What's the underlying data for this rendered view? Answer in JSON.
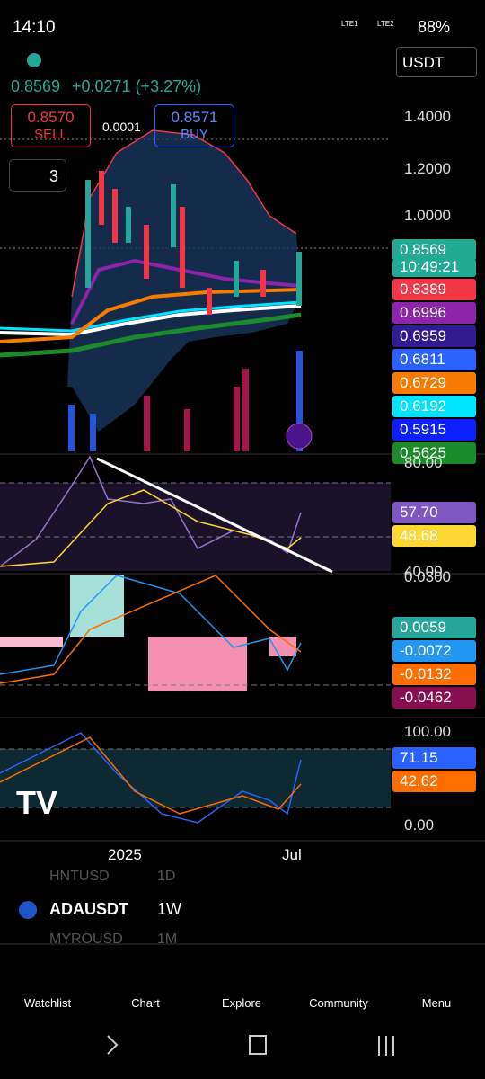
{
  "status_bar": {
    "time": "14:10",
    "sim1": "LTE1",
    "sim2": "LTE2",
    "battery": "88%"
  },
  "header": {
    "last_price": "0.8569",
    "change": "+0.0271 (+3.27%)",
    "currency": "USDT"
  },
  "trade": {
    "sell_price": "0.8570",
    "sell_label": "SELL",
    "spread": "0.0001",
    "buy_price": "0.8571",
    "buy_label": "BUY"
  },
  "indicators_count": "3",
  "price_axis": {
    "ticks": [
      "1.4000",
      "1.2000",
      "1.0000"
    ],
    "labels": [
      {
        "text": "0.8569",
        "sub": "10:49:21",
        "color": "#22ab94"
      },
      {
        "text": "0.8389",
        "color": "#f23645"
      },
      {
        "text": "0.6996",
        "color": "#8e24aa"
      },
      {
        "text": "0.6959",
        "color": "#311b92"
      },
      {
        "text": "0.6811",
        "color": "#2962ff"
      },
      {
        "text": "0.6729",
        "color": "#f57c00"
      },
      {
        "text": "0.6192",
        "color": "#00e5ff"
      },
      {
        "text": "0.5915",
        "color": "#0d1fff"
      },
      {
        "text": "0.5625",
        "color": "#1b8a2a"
      }
    ]
  },
  "rsi_pane": {
    "ticks": [
      "80.00",
      "40.00"
    ],
    "labels": [
      {
        "text": "57.70",
        "color": "#7e57c2"
      },
      {
        "text": "48.68",
        "color": "#fdd835"
      }
    ]
  },
  "macd_pane": {
    "ticks": [
      "0.0300"
    ],
    "labels": [
      {
        "text": "0.0059",
        "color": "#26a69a"
      },
      {
        "text": "-0.0072",
        "color": "#2196f3"
      },
      {
        "text": "-0.0132",
        "color": "#ff6d00"
      },
      {
        "text": "-0.0462",
        "color": "#880e4f"
      }
    ]
  },
  "stoch_pane": {
    "ticks": [
      "100.00",
      "0.00"
    ],
    "labels": [
      {
        "text": "71.15",
        "color": "#2962ff"
      },
      {
        "text": "42.62",
        "color": "#ff6d00"
      }
    ]
  },
  "time_axis": [
    "2025",
    "Jul"
  ],
  "toolbar": {
    "prev_symbol": "HNTUSD",
    "prev_interval": "1D",
    "symbol": "ADAUSDT",
    "interval": "1W",
    "next_symbol": "MYROUSD",
    "next_interval": "1M"
  },
  "nav": [
    "Watchlist",
    "Chart",
    "Explore",
    "Community",
    "Menu"
  ]
}
